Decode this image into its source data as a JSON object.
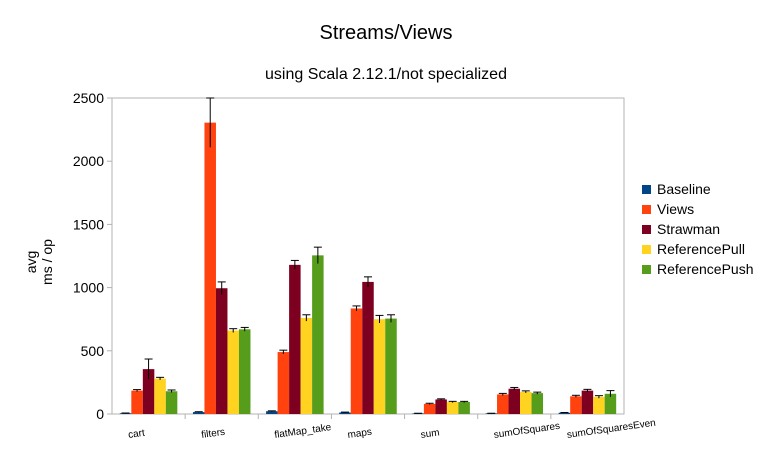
{
  "chart_data": {
    "type": "bar",
    "title": "Streams/Views",
    "subtitle": "using Scala 2.12.1/not specialized",
    "ylabel_line1": "avg",
    "ylabel_line2": "ms / op",
    "xlabel": "",
    "ylim": [
      0,
      2500
    ],
    "yticks": [
      0,
      500,
      1000,
      1500,
      2000,
      2500
    ],
    "grid": false,
    "legend_position": "right",
    "categories": [
      "cart",
      "filters",
      "flatMap_take",
      "maps",
      "sum",
      "sumOfSquares",
      "sumOfSquaresEven"
    ],
    "series": [
      {
        "name": "Baseline",
        "color": "#004586",
        "values": [
          6,
          15,
          22,
          12,
          5,
          5,
          10
        ],
        "errors": [
          2,
          3,
          3,
          3,
          1,
          1,
          2
        ]
      },
      {
        "name": "Views",
        "color": "#ff420e",
        "values": [
          185,
          2305,
          490,
          835,
          80,
          155,
          140
        ],
        "errors": [
          8,
          195,
          15,
          20,
          5,
          8,
          8
        ]
      },
      {
        "name": "Strawman",
        "color": "#7e0021",
        "values": [
          355,
          995,
          1180,
          1045,
          115,
          200,
          185
        ],
        "errors": [
          80,
          50,
          35,
          40,
          5,
          10,
          10
        ]
      },
      {
        "name": "ReferencePull",
        "color": "#ffd320",
        "values": [
          280,
          660,
          760,
          750,
          95,
          175,
          135
        ],
        "errors": [
          10,
          15,
          25,
          30,
          5,
          8,
          10
        ]
      },
      {
        "name": "ReferencePush",
        "color": "#579d1c",
        "values": [
          180,
          670,
          1255,
          755,
          95,
          165,
          160
        ],
        "errors": [
          10,
          15,
          65,
          30,
          5,
          8,
          25
        ]
      }
    ]
  }
}
